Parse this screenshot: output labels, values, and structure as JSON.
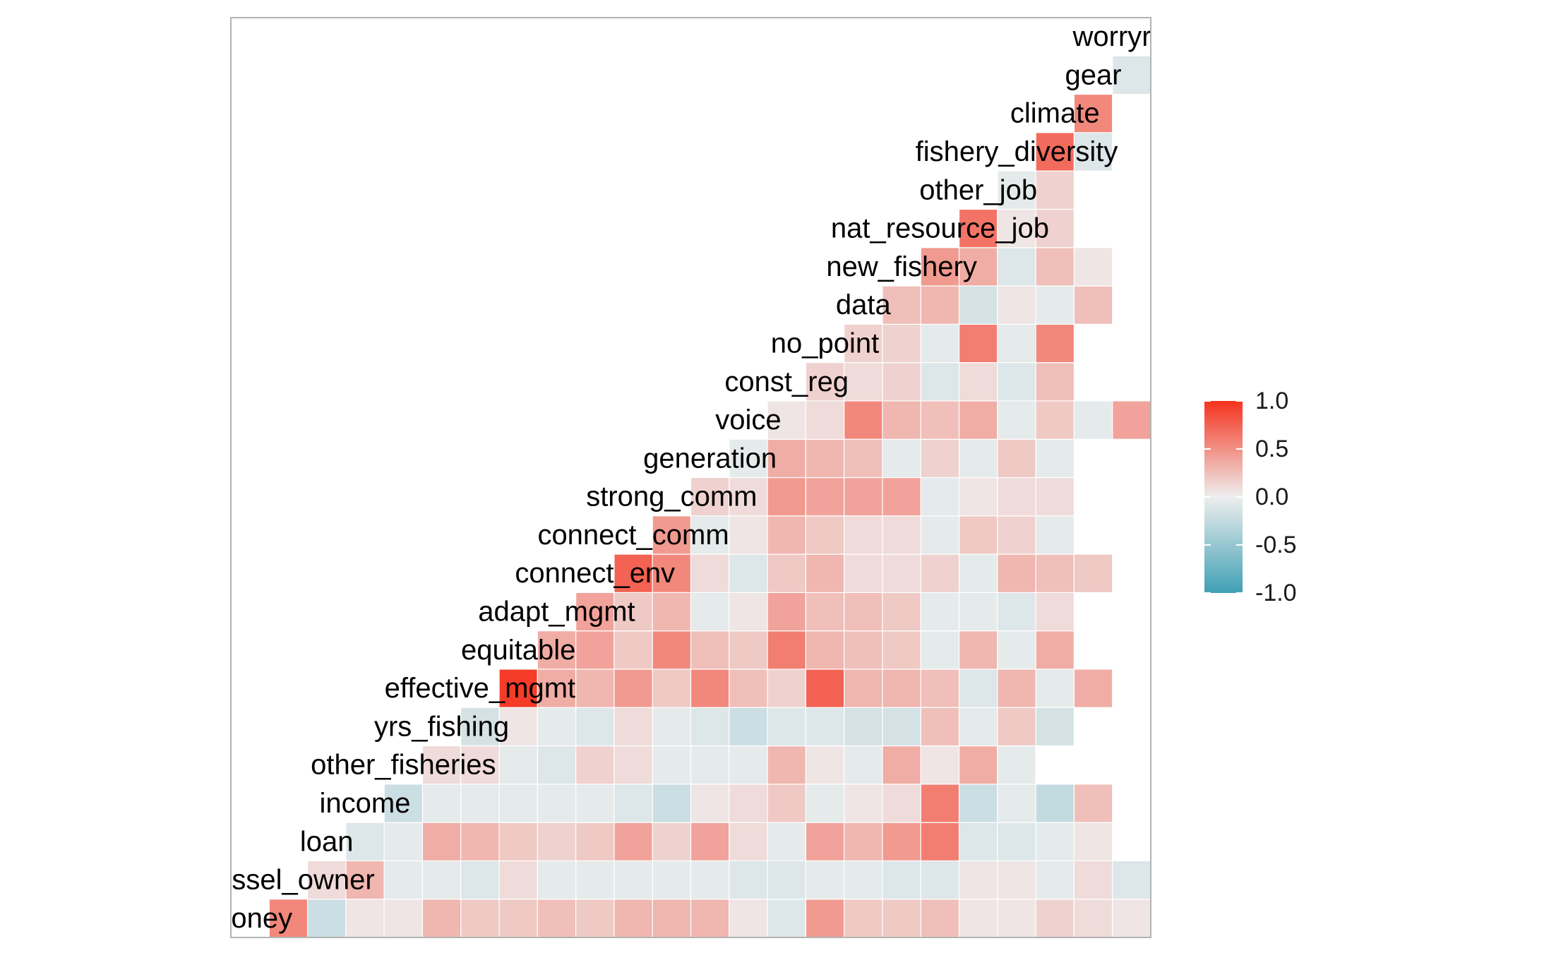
{
  "chart_data": {
    "type": "heatmap",
    "variables": [
      "money",
      "vessel_owner",
      "loan",
      "income",
      "other_fisheries",
      "yrs_fishing",
      "effective_mgmt",
      "equitable",
      "adapt_mgmt",
      "connect_env",
      "connect_comm",
      "strong_comm",
      "generation",
      "voice",
      "const_reg",
      "no_point",
      "data",
      "new_fishery",
      "nat_resource_job",
      "other_job",
      "fishery_diversity",
      "climate",
      "gear",
      "worryrate"
    ],
    "matrix": [
      [
        0.55,
        -0.2,
        0.05,
        0.05,
        0.3,
        0.2,
        0.2,
        0.25,
        0.2,
        0.3,
        0.3,
        0.3,
        0.05,
        -0.1,
        0.45,
        0.2,
        0.2,
        0.25,
        0.05,
        0.05,
        0.15,
        0.1,
        0.05,
        0.1
      ],
      [
        0.1,
        0.3,
        -0.05,
        -0.05,
        -0.1,
        0.1,
        -0.05,
        -0.05,
        -0.05,
        -0.05,
        -0.05,
        -0.1,
        -0.1,
        -0.05,
        -0.05,
        -0.1,
        -0.1,
        0.05,
        0.05,
        -0.05,
        0.1,
        -0.1
      ],
      [
        -0.1,
        -0.05,
        0.35,
        0.3,
        0.2,
        0.15,
        0.2,
        0.4,
        0.15,
        0.4,
        0.1,
        -0.05,
        0.4,
        0.3,
        0.45,
        0.6,
        -0.1,
        -0.1,
        -0.05,
        0.05
      ],
      [
        -0.2,
        -0.05,
        -0.05,
        -0.05,
        -0.05,
        -0.05,
        -0.1,
        -0.2,
        0.05,
        0.1,
        0.2,
        -0.05,
        0.05,
        0.1,
        0.6,
        -0.2,
        -0.05,
        -0.25,
        0.25
      ],
      [
        0.1,
        0.1,
        -0.05,
        -0.1,
        0.15,
        0.1,
        -0.05,
        -0.05,
        -0.05,
        0.3,
        0.05,
        -0.05,
        0.35,
        0.05,
        0.35,
        -0.05
      ],
      [
        -0.15,
        0.05,
        -0.05,
        -0.1,
        0.1,
        -0.05,
        -0.1,
        -0.2,
        -0.1,
        -0.1,
        -0.15,
        -0.15,
        0.25,
        -0.05,
        0.2,
        -0.15
      ],
      [
        0.95,
        0.35,
        0.3,
        0.45,
        0.2,
        0.55,
        0.25,
        0.15,
        0.75,
        0.3,
        0.3,
        0.25,
        -0.1,
        0.3,
        -0.05,
        0.35
      ],
      [
        0.35,
        0.4,
        0.2,
        0.55,
        0.25,
        0.2,
        0.6,
        0.3,
        0.25,
        0.2,
        -0.05,
        0.3,
        -0.05,
        0.35
      ],
      [
        0.4,
        0.2,
        0.3,
        -0.05,
        0.05,
        0.4,
        0.25,
        0.25,
        0.2,
        -0.05,
        -0.05,
        -0.1,
        0.1
      ],
      [
        0.75,
        0.55,
        0.1,
        -0.1,
        0.2,
        0.3,
        0.1,
        0.1,
        0.15,
        -0.05,
        0.3,
        0.25,
        0.2
      ],
      [
        0.45,
        -0.05,
        0.05,
        0.3,
        0.2,
        0.1,
        0.1,
        -0.05,
        0.2,
        0.15,
        -0.05
      ],
      [
        0.15,
        0.1,
        0.45,
        0.4,
        0.4,
        0.4,
        -0.05,
        0.05,
        0.1,
        0.1
      ],
      [
        -0.05,
        0.35,
        0.3,
        0.25,
        -0.05,
        0.15,
        -0.05,
        0.2,
        -0.05
      ],
      [
        0.05,
        0.1,
        0.55,
        0.3,
        0.25,
        0.35,
        -0.05,
        0.2,
        -0.05,
        0.4
      ],
      [
        0.15,
        0.1,
        0.15,
        -0.1,
        0.1,
        -0.1,
        0.25
      ],
      [
        0.15,
        0.15,
        -0.05,
        0.6,
        -0.05,
        0.55
      ],
      [
        0.25,
        0.3,
        -0.15,
        0.05,
        -0.05,
        0.25
      ],
      [
        0.45,
        0.35,
        -0.1,
        0.25,
        0.05
      ],
      [
        0.65,
        0.05,
        0.15
      ],
      [
        -0.05,
        0.15
      ],
      [
        0.7,
        -0.1
      ],
      [
        0.55
      ],
      [
        -0.1
      ],
      []
    ],
    "legend": {
      "title": "",
      "ticks": [
        "1.0",
        "0.5",
        "0.0",
        "-0.5",
        "-1.0"
      ],
      "placement": "right"
    },
    "colors": {
      "high": "#f5331e",
      "mid": "#eeeeee",
      "low": "#3fa0b5"
    },
    "grid": false,
    "xlabel": "",
    "ylabel": "",
    "title": ""
  }
}
